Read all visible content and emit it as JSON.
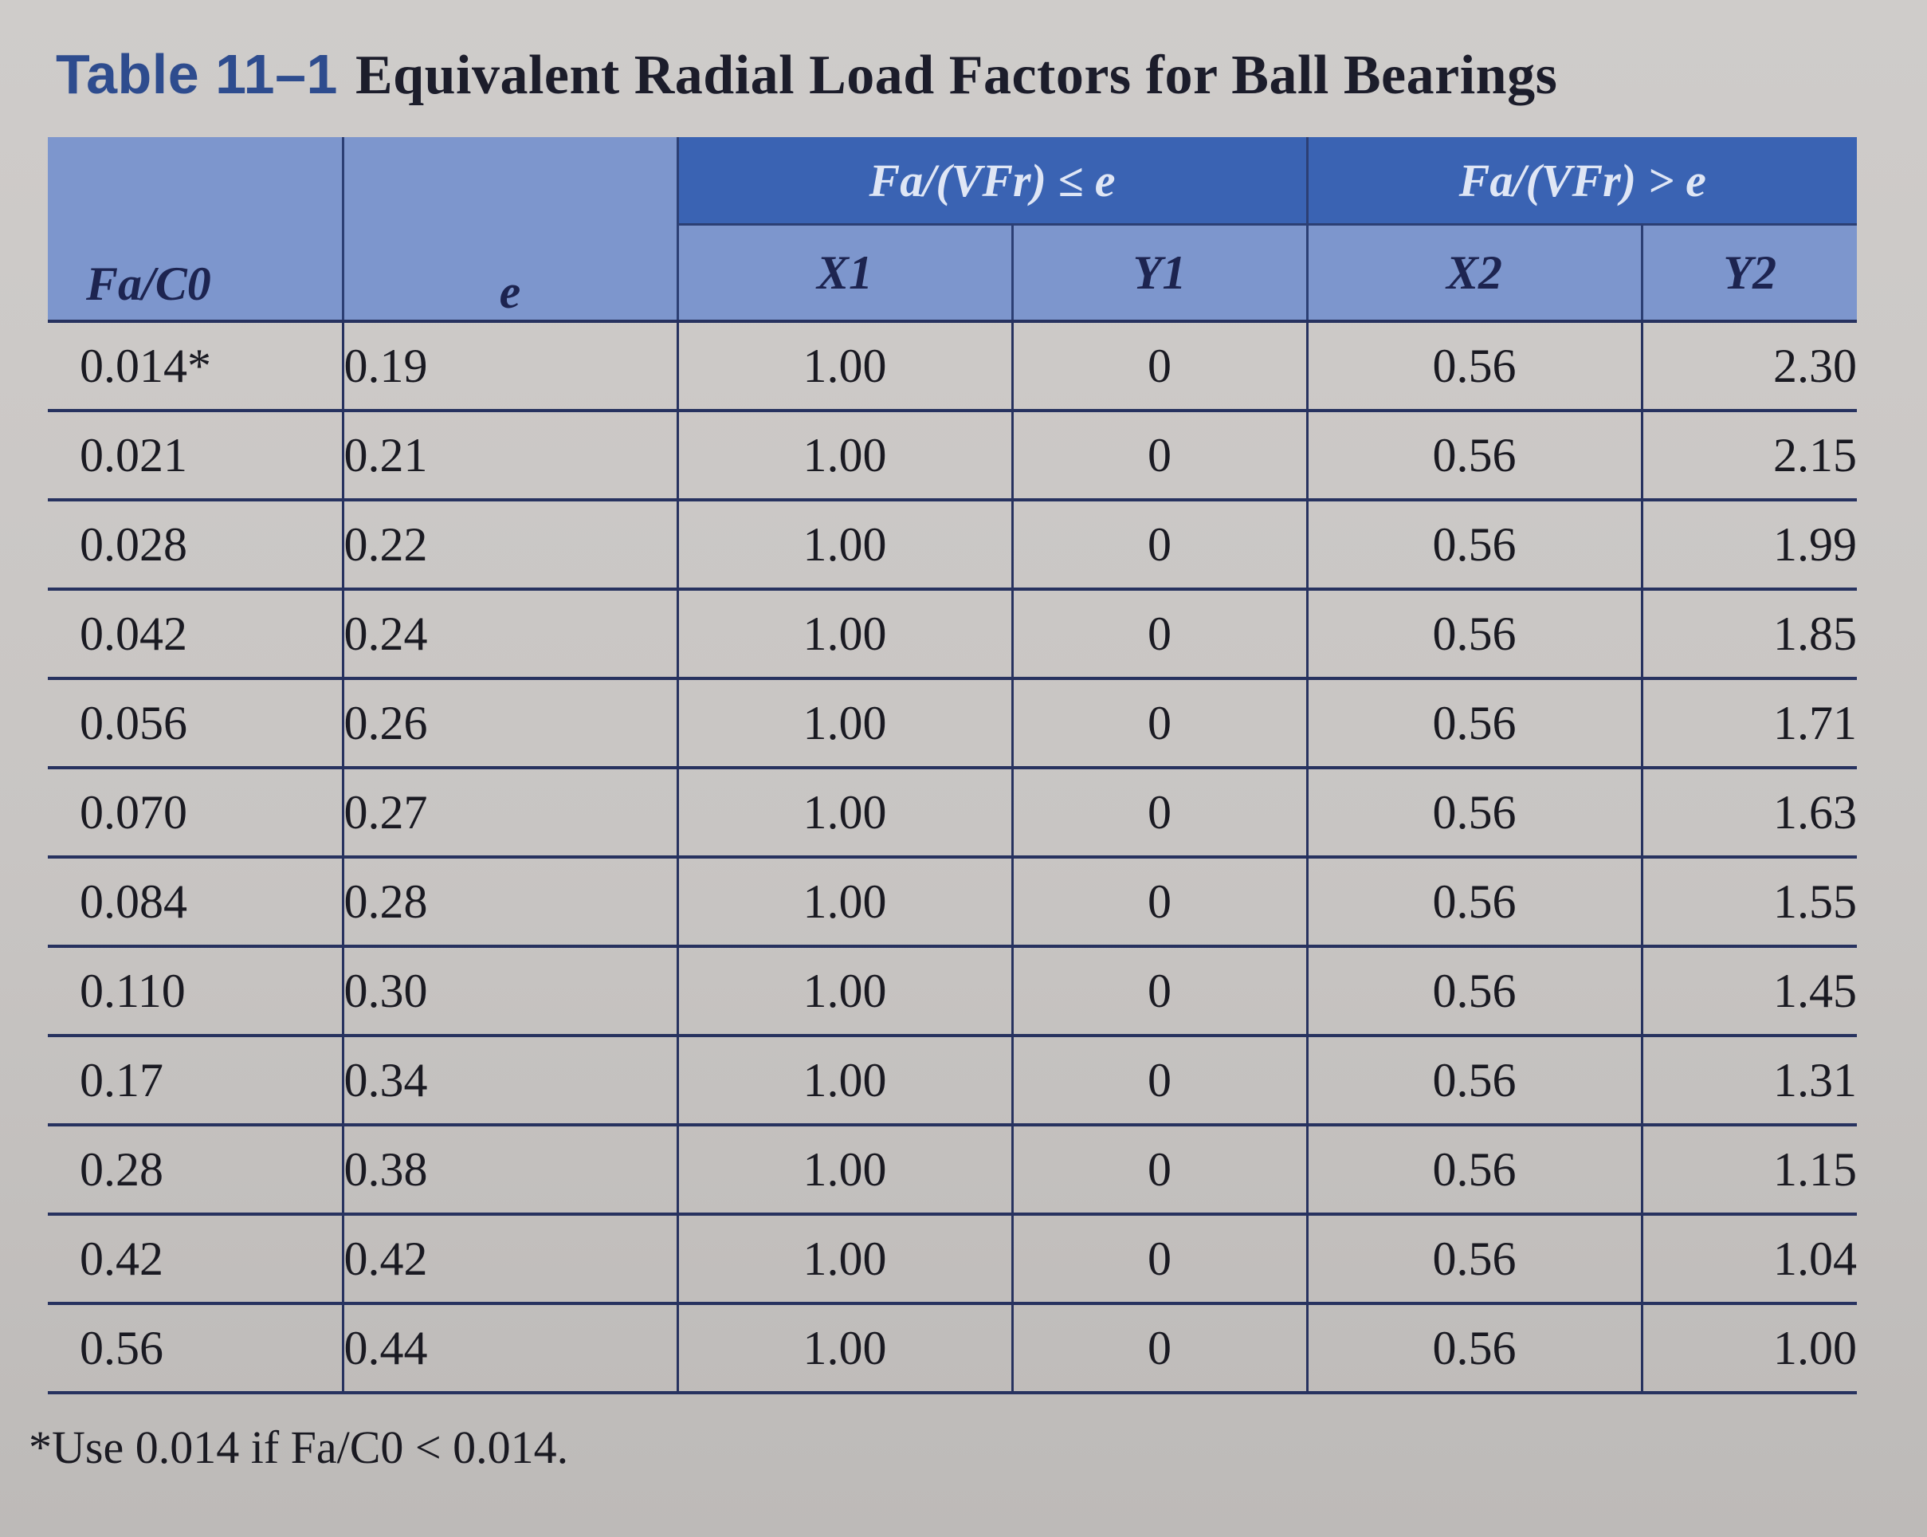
{
  "title": {
    "label": "Table 11–1",
    "text": "Equivalent Radial Load Factors for Ball Bearings"
  },
  "header": {
    "group_left": "Fa/(VFr) ≤ e",
    "group_right": "Fa/(VFr) > e",
    "columns": [
      "Fa/C0",
      "e",
      "X1",
      "Y1",
      "X2",
      "Y2"
    ]
  },
  "rows": [
    [
      "0.014*",
      "0.19",
      "1.00",
      "0",
      "0.56",
      "2.30"
    ],
    [
      "0.021",
      "0.21",
      "1.00",
      "0",
      "0.56",
      "2.15"
    ],
    [
      "0.028",
      "0.22",
      "1.00",
      "0",
      "0.56",
      "1.99"
    ],
    [
      "0.042",
      "0.24",
      "1.00",
      "0",
      "0.56",
      "1.85"
    ],
    [
      "0.056",
      "0.26",
      "1.00",
      "0",
      "0.56",
      "1.71"
    ],
    [
      "0.070",
      "0.27",
      "1.00",
      "0",
      "0.56",
      "1.63"
    ],
    [
      "0.084",
      "0.28",
      "1.00",
      "0",
      "0.56",
      "1.55"
    ],
    [
      "0.110",
      "0.30",
      "1.00",
      "0",
      "0.56",
      "1.45"
    ],
    [
      "0.17",
      "0.34",
      "1.00",
      "0",
      "0.56",
      "1.31"
    ],
    [
      "0.28",
      "0.38",
      "1.00",
      "0",
      "0.56",
      "1.15"
    ],
    [
      "0.42",
      "0.42",
      "1.00",
      "0",
      "0.56",
      "1.04"
    ],
    [
      "0.56",
      "0.44",
      "1.00",
      "0",
      "0.56",
      "1.00"
    ]
  ],
  "footnote": "*Use 0.014 if Fa/C0 < 0.014.",
  "colors": {
    "header_dark": "#3a63b3",
    "header_light": "#7d96cd",
    "title_label": "#2e4c8e"
  }
}
